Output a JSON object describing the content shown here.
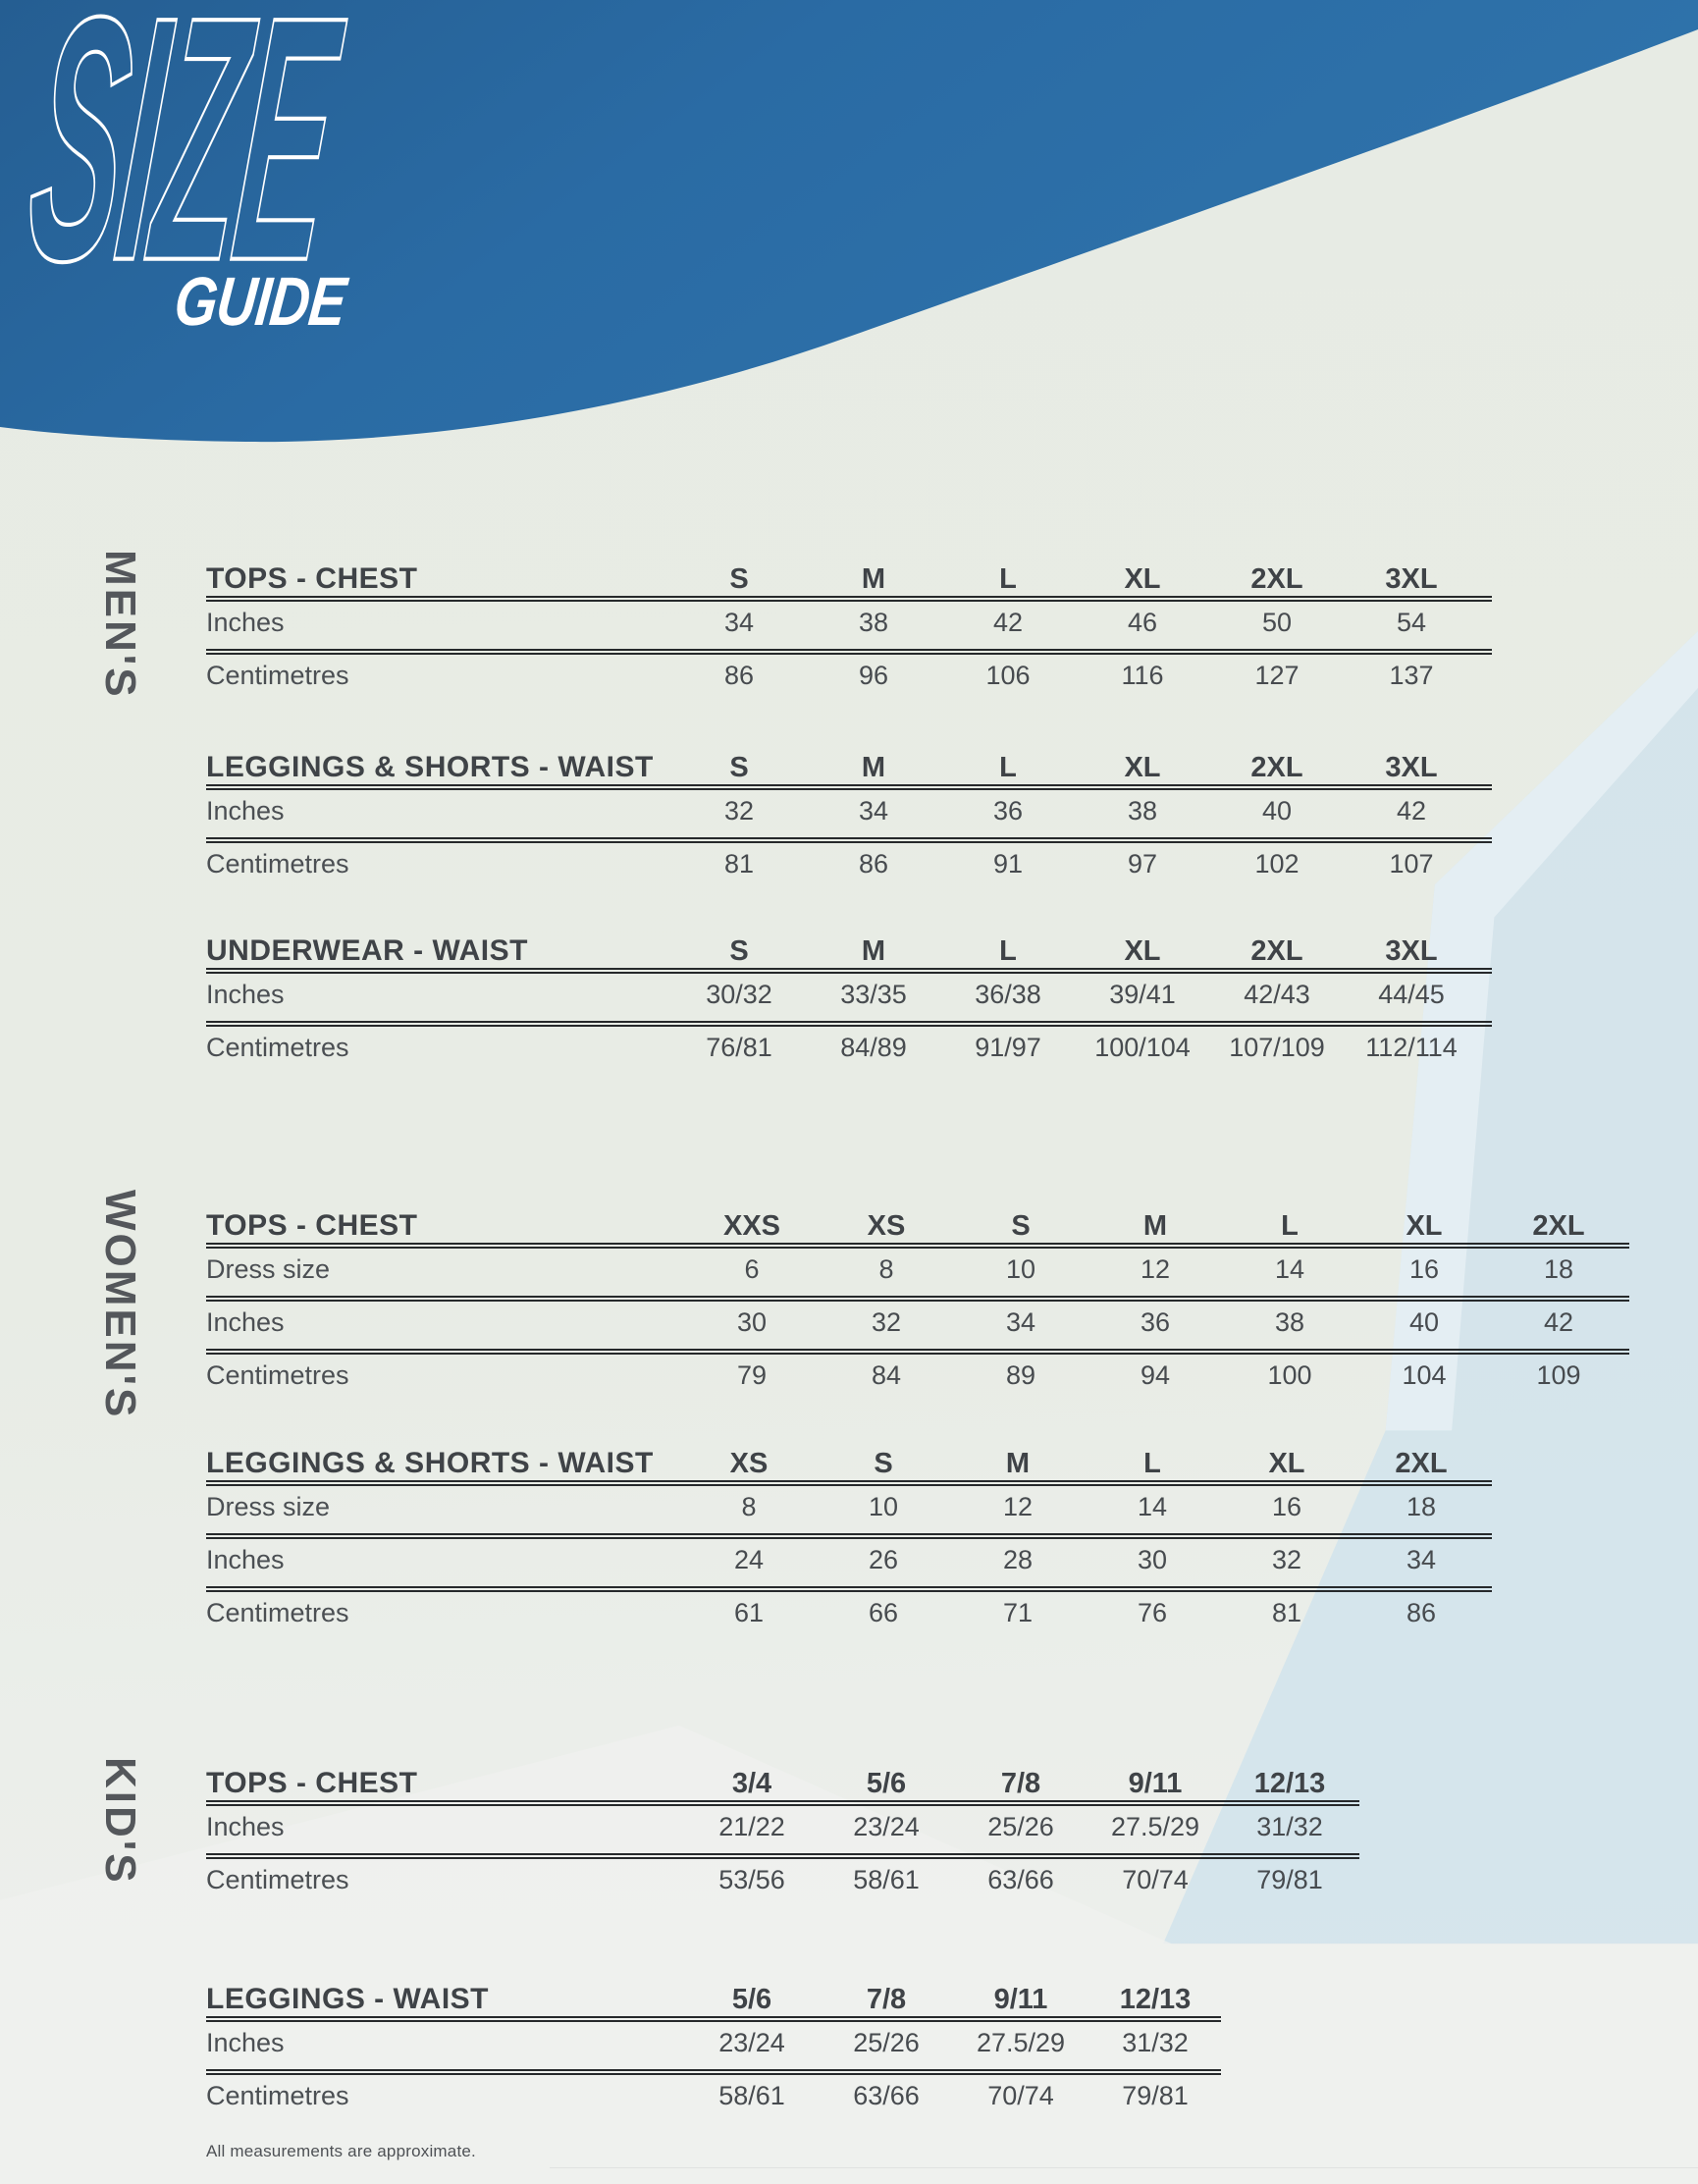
{
  "header": {
    "logo_line1": "SIZE",
    "logo_line2": "GUIDE"
  },
  "footnote": "All measurements are approximate.",
  "colors": {
    "header_blue_dark": "#255e92",
    "header_blue": "#2a6ba4",
    "header_blue_light": "#2f73ab",
    "light_blue": "#cfe2ec",
    "background": "#e8ece5",
    "text_dark": "#3f4347",
    "rule": "#26292b"
  },
  "sections": [
    {
      "id": "mens",
      "label": "MEN'S",
      "tables": [
        {
          "id": "mens-tops",
          "title": "TOPS - CHEST",
          "columns": [
            "S",
            "M",
            "L",
            "XL",
            "2XL",
            "3XL"
          ],
          "rows": [
            {
              "label": "Inches",
              "values": [
                "34",
                "38",
                "42",
                "46",
                "50",
                "54"
              ]
            },
            {
              "label": "Centimetres",
              "values": [
                "86",
                "96",
                "106",
                "116",
                "127",
                "137"
              ]
            }
          ]
        },
        {
          "id": "mens-leggings",
          "title": "LEGGINGS & SHORTS - WAIST",
          "columns": [
            "S",
            "M",
            "L",
            "XL",
            "2XL",
            "3XL"
          ],
          "rows": [
            {
              "label": "Inches",
              "values": [
                "32",
                "34",
                "36",
                "38",
                "40",
                "42"
              ]
            },
            {
              "label": "Centimetres",
              "values": [
                "81",
                "86",
                "91",
                "97",
                "102",
                "107"
              ]
            }
          ]
        },
        {
          "id": "mens-underwear",
          "title": "UNDERWEAR - WAIST",
          "columns": [
            "S",
            "M",
            "L",
            "XL",
            "2XL",
            "3XL"
          ],
          "rows": [
            {
              "label": "Inches",
              "values": [
                "30/32",
                "33/35",
                "36/38",
                "39/41",
                "42/43",
                "44/45"
              ]
            },
            {
              "label": "Centimetres",
              "values": [
                "76/81",
                "84/89",
                "91/97",
                "100/104",
                "107/109",
                "112/114"
              ]
            }
          ]
        }
      ]
    },
    {
      "id": "womens",
      "label": "WOMEN'S",
      "tables": [
        {
          "id": "womens-tops",
          "title": "TOPS - CHEST",
          "columns": [
            "XXS",
            "XS",
            "S",
            "M",
            "L",
            "XL",
            "2XL"
          ],
          "rows": [
            {
              "label": "Dress size",
              "values": [
                "6",
                "8",
                "10",
                "12",
                "14",
                "16",
                "18"
              ]
            },
            {
              "label": "Inches",
              "values": [
                "30",
                "32",
                "34",
                "36",
                "38",
                "40",
                "42"
              ]
            },
            {
              "label": "Centimetres",
              "values": [
                "79",
                "84",
                "89",
                "94",
                "100",
                "104",
                "109"
              ]
            }
          ]
        },
        {
          "id": "womens-leggings",
          "title": "LEGGINGS & SHORTS - WAIST",
          "columns": [
            "XS",
            "S",
            "M",
            "L",
            "XL",
            "2XL"
          ],
          "rows": [
            {
              "label": "Dress size",
              "values": [
                "8",
                "10",
                "12",
                "14",
                "16",
                "18"
              ]
            },
            {
              "label": "Inches",
              "values": [
                "24",
                "26",
                "28",
                "30",
                "32",
                "34"
              ]
            },
            {
              "label": "Centimetres",
              "values": [
                "61",
                "66",
                "71",
                "76",
                "81",
                "86"
              ]
            }
          ]
        }
      ]
    },
    {
      "id": "kids",
      "label": "KID'S",
      "tables": [
        {
          "id": "kids-tops",
          "title": "TOPS - CHEST",
          "columns": [
            "3/4",
            "5/6",
            "7/8",
            "9/11",
            "12/13"
          ],
          "rows": [
            {
              "label": "Inches",
              "values": [
                "21/22",
                "23/24",
                "25/26",
                "27.5/29",
                "31/32"
              ]
            },
            {
              "label": "Centimetres",
              "values": [
                "53/56",
                "58/61",
                "63/66",
                "70/74",
                "79/81"
              ]
            }
          ]
        },
        {
          "id": "kids-leggings",
          "title": "LEGGINGS - WAIST",
          "columns": [
            "5/6",
            "7/8",
            "9/11",
            "12/13"
          ],
          "rows": [
            {
              "label": "Inches",
              "values": [
                "23/24",
                "25/26",
                "27.5/29",
                "31/32"
              ]
            },
            {
              "label": "Centimetres",
              "values": [
                "58/61",
                "63/66",
                "70/74",
                "79/81"
              ]
            }
          ]
        }
      ]
    }
  ]
}
